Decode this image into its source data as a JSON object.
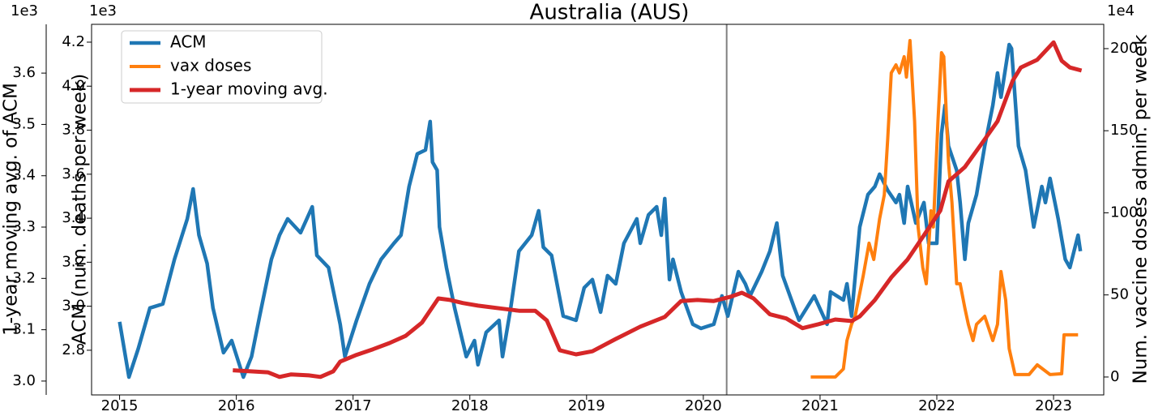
{
  "chart_data": {
    "type": "line",
    "title": "Australia (AUS)",
    "ylabel": "ACM (num. deaths per week)",
    "y2label": "Num. vaccine doses admin. per week",
    "y3label": "1-year moving avg. of ACM",
    "y_offset_label": "1e3",
    "y2_offset_label": "1e4",
    "y3_offset_label": "1e3",
    "legend": "upper left",
    "vline": 2020.2,
    "xlim": [
      2014.76,
      2023.43
    ],
    "xticks": [
      2015,
      2016,
      2017,
      2018,
      2019,
      2020,
      2021,
      2022,
      2023
    ],
    "ylim": [
      2.597,
      4.281
    ],
    "yticks": [
      2.8,
      {
        "value": 3,
        "label": "3.0"
      },
      3.2,
      3.4,
      3.6,
      3.8,
      {
        "value": 4,
        "label": "4.0"
      },
      4.2
    ],
    "y2lim": [
      -10.9,
      214.8
    ],
    "y2ticks": [
      0,
      50,
      100,
      150,
      200
    ],
    "y3lim": [
      2.973,
      3.695
    ],
    "y3ticks": [
      {
        "value": 3,
        "label": "3.0"
      },
      3.1,
      3.2,
      3.3,
      3.4,
      3.5,
      3.6
    ],
    "series": [
      {
        "name": "ACM",
        "color": "#1f77b4",
        "axis": "y",
        "x": [
          2015.0,
          2015.08,
          2015.16,
          2015.26,
          2015.37,
          2015.47,
          2015.58,
          2015.63,
          2015.68,
          2015.75,
          2015.8,
          2015.89,
          2015.96,
          2016.06,
          2016.13,
          2016.2,
          2016.3,
          2016.37,
          2016.44,
          2016.55,
          2016.65,
          2016.69,
          2016.79,
          2016.89,
          2016.93,
          2017.03,
          2017.14,
          2017.24,
          2017.35,
          2017.41,
          2017.48,
          2017.55,
          2017.62,
          2017.66,
          2017.68,
          2017.72,
          2017.74,
          2017.8,
          2017.87,
          2017.97,
          2018.04,
          2018.07,
          2018.14,
          2018.25,
          2018.28,
          2018.35,
          2018.42,
          2018.53,
          2018.59,
          2018.63,
          2018.7,
          2018.8,
          2018.91,
          2018.98,
          2019.05,
          2019.12,
          2019.18,
          2019.25,
          2019.32,
          2019.43,
          2019.46,
          2019.53,
          2019.6,
          2019.64,
          2019.67,
          2019.71,
          2019.74,
          2019.81,
          2019.91,
          2019.98,
          2020.09,
          2020.16,
          2020.21,
          2020.3,
          2020.36,
          2020.4,
          2020.5,
          2020.57,
          2020.63,
          2020.68,
          2020.78,
          2020.82,
          2020.95,
          2021.06,
          2021.09,
          2021.2,
          2021.23,
          2021.27,
          2021.34,
          2021.41,
          2021.47,
          2021.51,
          2021.58,
          2021.65,
          2021.68,
          2021.72,
          2021.75,
          2021.82,
          2021.89,
          2021.93,
          2022.0,
          2022.04,
          2022.07,
          2022.1,
          2022.17,
          2022.2,
          2022.24,
          2022.27,
          2022.34,
          2022.41,
          2022.48,
          2022.52,
          2022.55,
          2022.62,
          2022.64,
          2022.7,
          2022.76,
          2022.83,
          2022.9,
          2022.93,
          2022.97,
          2023.04,
          2023.1,
          2023.14,
          2023.21,
          2023.23
        ],
        "values": [
          2.929,
          2.678,
          2.807,
          2.992,
          3.01,
          3.213,
          3.397,
          3.533,
          3.323,
          3.194,
          2.992,
          2.789,
          2.844,
          2.678,
          2.771,
          2.955,
          3.213,
          3.323,
          3.397,
          3.334,
          3.452,
          3.231,
          3.176,
          2.918,
          2.771,
          2.936,
          3.102,
          3.213,
          3.286,
          3.323,
          3.544,
          3.692,
          3.71,
          3.839,
          3.655,
          3.618,
          3.36,
          3.176,
          2.992,
          2.771,
          2.844,
          2.734,
          2.881,
          2.936,
          2.771,
          2.992,
          3.25,
          3.323,
          3.434,
          3.268,
          3.231,
          2.955,
          2.936,
          3.084,
          3.121,
          2.973,
          3.139,
          3.102,
          3.286,
          3.397,
          3.286,
          3.415,
          3.452,
          3.323,
          3.489,
          3.121,
          3.213,
          3.065,
          2.918,
          2.899,
          2.918,
          3.047,
          2.955,
          3.157,
          3.102,
          3.047,
          3.157,
          3.25,
          3.378,
          3.139,
          2.992,
          2.936,
          3.047,
          2.918,
          3.065,
          3.028,
          3.102,
          2.955,
          3.36,
          3.507,
          3.544,
          3.6,
          3.526,
          3.471,
          3.507,
          3.378,
          3.544,
          3.378,
          3.471,
          3.286,
          3.286,
          3.784,
          3.913,
          3.728,
          3.618,
          3.471,
          3.213,
          3.378,
          3.507,
          3.728,
          3.913,
          4.06,
          3.95,
          4.189,
          4.171,
          3.728,
          3.618,
          3.36,
          3.544,
          3.471,
          3.581,
          3.397,
          3.213,
          3.176,
          3.323,
          3.25
        ]
      },
      {
        "name": "vax doses",
        "color": "#ff7f0e",
        "axis": "y2",
        "x": [
          2020.92,
          2021.13,
          2021.2,
          2021.23,
          2021.27,
          2021.3,
          2021.37,
          2021.42,
          2021.46,
          2021.51,
          2021.55,
          2021.58,
          2021.61,
          2021.65,
          2021.68,
          2021.72,
          2021.74,
          2021.77,
          2021.81,
          2021.84,
          2021.88,
          2021.91,
          2021.95,
          2021.97,
          2022.01,
          2022.04,
          2022.06,
          2022.1,
          2022.13,
          2022.17,
          2022.2,
          2022.24,
          2022.27,
          2022.31,
          2022.34,
          2022.41,
          2022.48,
          2022.52,
          2022.55,
          2022.59,
          2022.62,
          2022.67,
          2022.79,
          2022.86,
          2022.97,
          2023.07,
          2023.09,
          2023.21
        ],
        "values": [
          0,
          0,
          4.9,
          22.2,
          32.1,
          37,
          61.7,
          81.5,
          71.6,
          96.3,
          111,
          145.7,
          185.2,
          190.1,
          185.2,
          195.1,
          182.7,
          204.9,
          155.6,
          91.4,
          66.7,
          56.8,
          101.2,
          91.4,
          155.6,
          197.5,
          195.1,
          130.9,
          106.2,
          56.8,
          56.8,
          42,
          32.1,
          22.2,
          32.1,
          37,
          22.2,
          32.1,
          64.2,
          46.9,
          17.3,
          1.5,
          1.5,
          7.4,
          1.5,
          2,
          25.7,
          25.7
        ]
      },
      {
        "name": "1-year moving avg.",
        "color": "#d62728",
        "axis": "y3",
        "x": [
          2015.97,
          2016.27,
          2016.37,
          2016.47,
          2016.62,
          2016.72,
          2016.83,
          2016.89,
          2017.03,
          2017.17,
          2017.31,
          2017.45,
          2017.59,
          2017.73,
          2017.83,
          2017.94,
          2018.07,
          2018.28,
          2018.42,
          2018.56,
          2018.66,
          2018.77,
          2018.91,
          2019.05,
          2019.25,
          2019.46,
          2019.67,
          2019.81,
          2019.95,
          2020.09,
          2020.23,
          2020.33,
          2020.43,
          2020.57,
          2020.71,
          2020.85,
          2020.99,
          2021.13,
          2021.27,
          2021.34,
          2021.47,
          2021.61,
          2021.75,
          2021.89,
          2022.03,
          2022.1,
          2022.24,
          2022.38,
          2022.52,
          2022.65,
          2022.72,
          2022.86,
          2023.0,
          2023.07,
          2023.14,
          2023.24
        ],
        "values": [
          3.021,
          3.017,
          3.008,
          3.013,
          3.011,
          3.008,
          3.019,
          3.038,
          3.051,
          3.062,
          3.074,
          3.088,
          3.114,
          3.161,
          3.158,
          3.152,
          3.147,
          3.141,
          3.137,
          3.137,
          3.118,
          3.06,
          3.052,
          3.058,
          3.082,
          3.106,
          3.125,
          3.156,
          3.158,
          3.156,
          3.164,
          3.172,
          3.161,
          3.13,
          3.122,
          3.103,
          3.111,
          3.12,
          3.117,
          3.126,
          3.158,
          3.202,
          3.237,
          3.284,
          3.332,
          3.389,
          3.417,
          3.461,
          3.506,
          3.585,
          3.611,
          3.626,
          3.66,
          3.624,
          3.611,
          3.605
        ]
      }
    ]
  }
}
